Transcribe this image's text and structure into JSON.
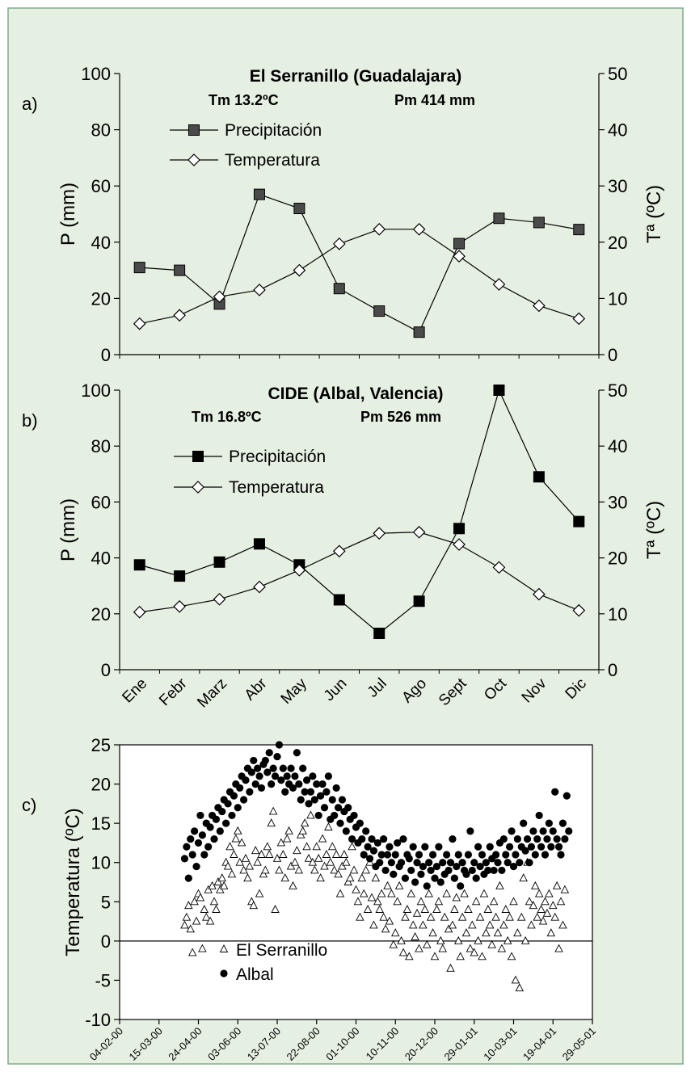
{
  "figure": {
    "background": "#ffffff",
    "panel_background": "#e6f0e2",
    "border_color": "#7fae8c"
  },
  "chart_data": [
    {
      "type": "line",
      "panel_label": "a)",
      "title": "El Serranillo (Guadalajara)",
      "annotations": [
        "Tm 13.2ºC",
        "Pm 414 mm"
      ],
      "categories": [
        "Ene",
        "Febr",
        "Marz",
        "Abr",
        "May",
        "Jun",
        "Jul",
        "Ago",
        "Sept",
        "Oct",
        "Nov",
        "Dic"
      ],
      "ylabel": "P  (mm)",
      "y2label": "Tª (ºC)",
      "ylim": [
        0,
        100
      ],
      "y2lim": [
        0,
        50
      ],
      "yticks": [
        "0",
        "20",
        "40",
        "60",
        "80",
        "100"
      ],
      "y2ticks": [
        "0",
        "10",
        "20",
        "30",
        "40",
        "50"
      ],
      "legend": "upper-left",
      "series": [
        {
          "name": "Precipitación",
          "axis": "left",
          "marker": "square-grey",
          "values": [
            31,
            30,
            18,
            57,
            52,
            23.5,
            15.5,
            8,
            39.5,
            48.5,
            47,
            44.5
          ]
        },
        {
          "name": "Temperatura",
          "axis": "right",
          "marker": "diamond-open",
          "values": [
            5.5,
            7,
            10.3,
            11.5,
            15,
            19.7,
            22.3,
            22.3,
            17.5,
            12.5,
            8.7,
            6.4
          ]
        }
      ]
    },
    {
      "type": "line",
      "panel_label": "b)",
      "title": "CIDE (Albal, Valencia)",
      "annotations": [
        "Tm 16.8ºC",
        "Pm 526 mm"
      ],
      "categories": [
        "Ene",
        "Febr",
        "Marz",
        "Abr",
        "May",
        "Jun",
        "Jul",
        "Ago",
        "Sept",
        "Oct",
        "Nov",
        "Dic"
      ],
      "ylabel": "P  (mm)",
      "y2label": "Tª (ºC)",
      "ylim": [
        0,
        100
      ],
      "y2lim": [
        0,
        50
      ],
      "yticks": [
        "0",
        "20",
        "40",
        "60",
        "80",
        "100"
      ],
      "y2ticks": [
        "0",
        "10",
        "20",
        "30",
        "40",
        "50"
      ],
      "legend": "upper-left",
      "series": [
        {
          "name": "Precipitación",
          "axis": "left",
          "marker": "square-black",
          "values": [
            37.5,
            33.5,
            38.5,
            45,
            37.5,
            25,
            13,
            24.5,
            50.5,
            100,
            69,
            53
          ]
        },
        {
          "name": "Temperatura",
          "axis": "right",
          "marker": "diamond-open",
          "values": [
            10.3,
            11.3,
            12.6,
            14.8,
            17.8,
            21.2,
            24.4,
            24.6,
            22.4,
            18.3,
            13.5,
            10.6
          ]
        }
      ]
    },
    {
      "type": "scatter",
      "panel_label": "c)",
      "ylabel": "Temperatura (ºC)",
      "ylim": [
        -10,
        25
      ],
      "yticks": [
        "-10",
        "-5",
        "0",
        "5",
        "10",
        "15",
        "20",
        "25"
      ],
      "x_range": [
        "2000-02-04",
        "2001-05-29"
      ],
      "xticks": [
        "04-02-00",
        "15-03-00",
        "24-04-00",
        "03-06-00",
        "13-07-00",
        "22-08-00",
        "01-10-00",
        "10-11-00",
        "20-12-00",
        "29-01-01",
        "10-03-01",
        "19-04-01",
        "29-05-01"
      ],
      "legend": "lower-left",
      "series": [
        {
          "name": "El Serranillo",
          "marker": "triangle-open",
          "x_start": "2000-04-10",
          "step_days": 2,
          "values": [
            2,
            3,
            4.5,
            1.5,
            -1.5,
            5,
            2.5,
            6,
            5.5,
            -1,
            4,
            3,
            6.5,
            2.5,
            7,
            5,
            4,
            7.5,
            6.5,
            8,
            7,
            10,
            9.5,
            12,
            8.5,
            11,
            13,
            14,
            10,
            12.5,
            9,
            10.5,
            8,
            9.5,
            5,
            4.5,
            11.5,
            10,
            6,
            11,
            8.5,
            9,
            12,
            11,
            15,
            16.5,
            4,
            10.5,
            9,
            12.5,
            11,
            8,
            13,
            14,
            9.5,
            7,
            10,
            11.5,
            9,
            13.5,
            14,
            15,
            12,
            10.5,
            16,
            10,
            9,
            12,
            10.5,
            8,
            13,
            9.5,
            11,
            14.5,
            10,
            12,
            9,
            11,
            8.5,
            6,
            9.5,
            11,
            10,
            7.5,
            8,
            12,
            9,
            6.5,
            5,
            3,
            8,
            6,
            9,
            4,
            10,
            5.5,
            2,
            8,
            5,
            4,
            6,
            3,
            1.5,
            7,
            2.5,
            6,
            -0.5,
            1,
            5,
            7,
            0,
            -1.5,
            3,
            4,
            -2,
            6,
            2,
            0.5,
            3.5,
            -1,
            5,
            2,
            4,
            -0.5,
            6,
            3,
            1,
            -2,
            4,
            5,
            0,
            -1,
            3,
            6,
            1.5,
            -3.5,
            2,
            4,
            5.5,
            0,
            -2,
            3,
            6,
            1,
            4,
            -1,
            2,
            -1.5,
            5,
            0,
            3,
            -2,
            6,
            1,
            4,
            2,
            -0.5,
            5,
            3,
            1,
            7,
            -1,
            2,
            4,
            0,
            3,
            -2,
            5,
            -5,
            1,
            -6,
            3,
            8,
            0,
            10,
            5,
            2,
            4.5,
            7,
            3,
            6,
            4,
            2.5,
            5,
            3.5,
            6,
            1,
            4.5,
            3,
            7,
            -1,
            5,
            2,
            6.5
          ]
        },
        {
          "name": "Albal",
          "marker": "circle-filled",
          "x_start": "2000-04-10",
          "step_days": 2,
          "values": [
            10.5,
            12,
            8,
            13,
            11,
            14,
            9.5,
            12.5,
            16,
            13.5,
            11,
            15,
            12,
            14.5,
            16,
            13,
            15.5,
            17,
            14,
            16.5,
            18,
            15,
            17.5,
            19,
            16,
            18.5,
            20,
            17,
            19.5,
            21,
            18,
            20.5,
            22,
            19,
            21.5,
            23,
            20,
            22,
            21,
            19.5,
            22.5,
            23,
            21.5,
            24,
            20,
            22,
            21,
            23.5,
            25,
            20.5,
            22,
            19,
            21,
            20,
            22,
            19.5,
            21,
            24,
            20,
            18,
            22,
            19,
            20.5,
            17.5,
            19,
            21,
            18,
            20,
            16,
            18.5,
            20,
            17,
            19,
            21,
            15.5,
            18,
            16,
            19.5,
            17,
            15,
            18,
            16.5,
            14,
            17,
            15.5,
            13,
            16,
            14.5,
            12.5,
            15,
            13,
            11,
            14,
            12,
            10.5,
            13,
            11.5,
            9.5,
            12.5,
            10,
            11,
            13,
            9,
            11,
            12,
            10,
            8.5,
            11,
            12.5,
            9.5,
            10,
            13,
            8,
            11,
            10.5,
            9,
            12,
            7.5,
            10,
            11,
            8.5,
            9.5,
            12,
            7,
            10,
            9,
            11,
            8,
            9.5,
            12,
            7.5,
            10,
            8.5,
            11,
            9,
            10,
            13,
            8,
            9.5,
            11,
            7,
            10,
            9,
            8.5,
            11,
            14,
            9,
            10,
            8,
            12,
            9.5,
            11,
            8.5,
            10,
            9,
            12,
            10.5,
            9,
            11,
            10,
            12.5,
            9,
            13,
            11,
            10,
            12,
            14,
            9.5,
            11,
            13,
            10,
            12,
            15,
            11.5,
            13,
            10,
            12,
            14,
            11,
            13,
            16,
            12,
            14,
            11,
            13,
            15,
            12,
            14,
            19,
            13,
            12,
            11,
            15,
            13,
            18.5,
            14
          ]
        }
      ]
    }
  ]
}
